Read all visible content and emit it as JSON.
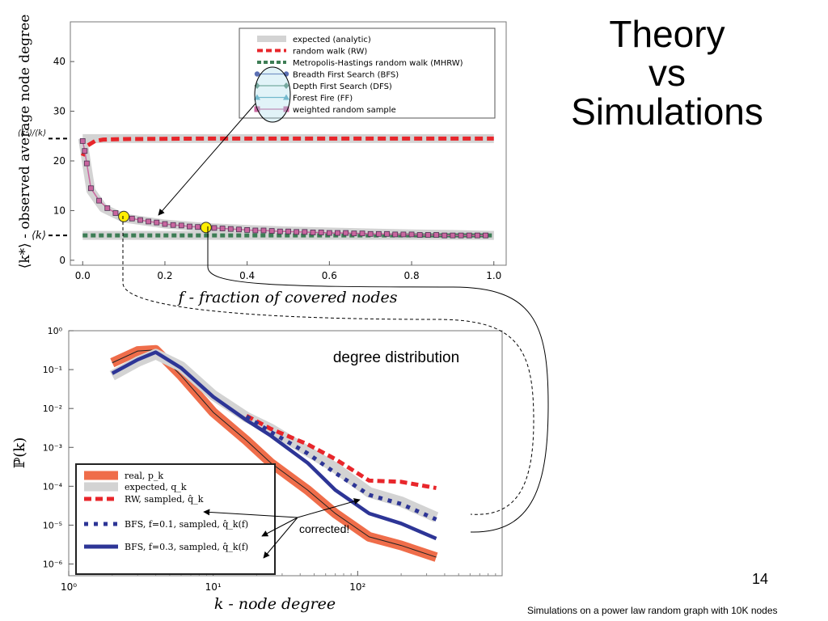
{
  "slide": {
    "title_lines": [
      "Theory",
      "vs",
      "Simulations"
    ],
    "page_number": "14",
    "footnote": "Simulations on a power law random graph with 10K nodes"
  },
  "colors": {
    "expected": "#d3d3d3",
    "rw": "#e8262b",
    "mhrw": "#3d7d55",
    "bfs": "#5b6fb3",
    "dfs": "#5b8f78",
    "ff": "#57a7be",
    "wrs": "#c9669f",
    "real": "#ef6d4a",
    "bfs_dark": "#2d3596",
    "highlight": "#ffee00"
  },
  "chart_data": [
    {
      "type": "line",
      "title": "",
      "xlabel": "f - fraction of covered nodes",
      "ylabel": "⟨k*⟩ - observed average node degree",
      "xlim": [
        -0.03,
        1.03
      ],
      "ylim": [
        -1,
        48
      ],
      "xticks": [
        "0.0",
        "0.2",
        "0.4",
        "0.6",
        "0.8",
        "1.0"
      ],
      "yticks": [
        "0",
        "10",
        "20",
        "30",
        "40"
      ],
      "yextra_labels": [
        "⟨k²⟩/⟨k⟩",
        "⟨k⟩"
      ],
      "yextra_values": [
        24.5,
        5
      ],
      "grid": false,
      "legend_position": "top-right",
      "legend": [
        "expected (analytic)",
        "random walk (RW)",
        "Metropolis-Hastings random walk (MHRW)",
        "Breadth First Search (BFS)",
        "Depth First Search (DFS)",
        "Forest Fire (FF)",
        "weighted random sample"
      ],
      "series": [
        {
          "name": "expected (analytic)",
          "x": [
            0.0,
            0.02,
            0.05,
            0.1,
            0.2,
            0.3,
            0.4,
            0.5,
            0.6,
            0.7,
            0.8,
            0.9,
            1.0
          ],
          "y": [
            24.5,
            14.0,
            10.5,
            8.5,
            7.3,
            6.6,
            6.2,
            5.9,
            5.7,
            5.5,
            5.3,
            5.2,
            5.0
          ]
        },
        {
          "name": "random walk (RW)",
          "x": [
            0.0,
            0.01,
            0.03,
            0.05,
            0.1,
            0.3,
            0.5,
            0.7,
            0.9,
            1.0
          ],
          "y": [
            21.0,
            23.0,
            24.0,
            24.3,
            24.4,
            24.5,
            24.5,
            24.5,
            24.5,
            24.5
          ]
        },
        {
          "name": "Metropolis-Hastings random walk (MHRW)",
          "x": [
            0.0,
            0.2,
            0.4,
            0.6,
            0.8,
            1.0
          ],
          "y": [
            5.0,
            5.0,
            5.0,
            5.0,
            5.0,
            5.0
          ]
        },
        {
          "name": "weighted random sample",
          "x": [
            0.0,
            0.005,
            0.01,
            0.02,
            0.04,
            0.06,
            0.08,
            0.1,
            0.12,
            0.14,
            0.16,
            0.18,
            0.2,
            0.22,
            0.24,
            0.26,
            0.28,
            0.3,
            0.32,
            0.34,
            0.36,
            0.38,
            0.4,
            0.42,
            0.44,
            0.46,
            0.48,
            0.5,
            0.52,
            0.54,
            0.56,
            0.58,
            0.6,
            0.62,
            0.64,
            0.66,
            0.68,
            0.7,
            0.72,
            0.74,
            0.76,
            0.78,
            0.8,
            0.82,
            0.84,
            0.86,
            0.88,
            0.9,
            0.92,
            0.94,
            0.96,
            0.98
          ],
          "y": [
            24.0,
            22.0,
            19.5,
            14.5,
            12.0,
            10.5,
            9.5,
            8.8,
            8.4,
            8.1,
            7.8,
            7.6,
            7.3,
            7.1,
            7.0,
            6.8,
            6.7,
            6.6,
            6.5,
            6.4,
            6.3,
            6.2,
            6.1,
            6.0,
            6.0,
            5.9,
            5.8,
            5.8,
            5.7,
            5.7,
            5.6,
            5.6,
            5.5,
            5.5,
            5.5,
            5.4,
            5.4,
            5.3,
            5.3,
            5.3,
            5.2,
            5.2,
            5.2,
            5.1,
            5.1,
            5.1,
            5.0,
            5.0,
            5.0,
            5.0,
            5.0,
            5.0
          ]
        }
      ],
      "highlight_points": [
        {
          "x": 0.1,
          "y": 8.8
        },
        {
          "x": 0.3,
          "y": 6.6
        }
      ]
    },
    {
      "type": "line",
      "title": "degree distribution",
      "xlabel": "k - node degree",
      "ylabel": "ℙ(k)",
      "xscale": "log",
      "yscale": "log",
      "xlim": [
        1,
        1000
      ],
      "ylim": [
        5e-07,
        1
      ],
      "xtick_labels": [
        "10⁰",
        "10¹",
        "10²"
      ],
      "ytick_labels": [
        "10⁰",
        "10⁻¹",
        "10⁻²",
        "10⁻³",
        "10⁻⁴",
        "10⁻⁵",
        "10⁻⁶"
      ],
      "grid": false,
      "legend_position": "bottom-left",
      "legend": [
        "real, p_k",
        "expected, q_k",
        "RW, sampled, q̂_k",
        "BFS, f=0.1, sampled, q̂_k(f)",
        "BFS, f=0.3, sampled, q̂_k(f)"
      ],
      "annotation": "corrected!",
      "series": [
        {
          "name": "real, p_k",
          "x": [
            2,
            3,
            4,
            6,
            10,
            17,
            25,
            45,
            70,
            120,
            200,
            350
          ],
          "y": [
            0.15,
            0.3,
            0.32,
            0.07,
            0.008,
            0.0015,
            0.0004,
            8e-05,
            2e-05,
            5e-06,
            3e-06,
            1.5e-06
          ]
        },
        {
          "name": "expected, q_k",
          "x": [
            2,
            3,
            4,
            6,
            10,
            17,
            25,
            45,
            70,
            120,
            200,
            350
          ],
          "y": [
            0.07,
            0.16,
            0.25,
            0.12,
            0.022,
            0.006,
            0.003,
            0.0008,
            0.0003,
            7e-05,
            4e-05,
            1.6e-05
          ]
        },
        {
          "name": "RW, sampled, q̂_k",
          "x": [
            17,
            25,
            45,
            70,
            120,
            200,
            350
          ],
          "y": [
            0.0065,
            0.003,
            0.0012,
            0.0005,
            0.00014,
            0.00013,
            9e-05
          ]
        },
        {
          "name": "BFS, f=0.1, sampled, q̂_k(f)",
          "x": [
            17,
            25,
            45,
            70,
            120,
            200,
            350
          ],
          "y": [
            0.0062,
            0.0025,
            0.0007,
            0.00022,
            6e-05,
            3.5e-05,
            1.4e-05
          ]
        },
        {
          "name": "BFS, f=0.3, sampled, q̂_k(f)",
          "x": [
            2,
            3,
            4,
            6,
            10,
            17,
            25,
            45,
            70,
            120,
            200,
            350
          ],
          "y": [
            0.08,
            0.18,
            0.28,
            0.11,
            0.02,
            0.005,
            0.002,
            0.0004,
            8e-05,
            2e-05,
            1.1e-05,
            4.5e-06
          ]
        }
      ]
    }
  ]
}
